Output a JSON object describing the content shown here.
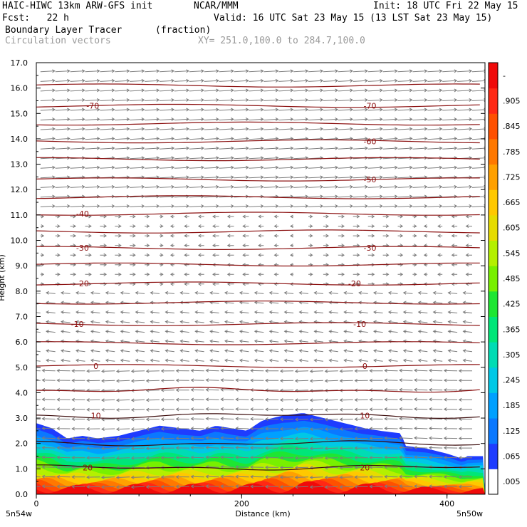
{
  "header": {
    "model": "HAIC-HIWC 13km ARW-GFS init",
    "org": "NCAR/MMM",
    "init": "Init: 18 UTC Fri 22 May 15",
    "fcst": "Fcst:   22 h",
    "valid": "Valid: 16 UTC Sat 23 May 15 (13 LST Sat 23 May 15)",
    "field": "Boundary Layer Tracer",
    "units": "(fraction)",
    "vectors": "Circulation vectors",
    "xy": "XY= 251.0,100.0 to 284.7,100.0"
  },
  "chart_data": {
    "type": "heatmap",
    "xlabel": "Distance (km)",
    "ylabel": "Height (km)",
    "xlim": [
      0,
      437
    ],
    "ylim": [
      0,
      17
    ],
    "x_ticks": [
      "0",
      "200",
      "400"
    ],
    "x_endpoints": [
      "5n54w",
      "5n50w"
    ],
    "y_ticks": [
      "0.0",
      "1.0",
      "2.0",
      "3.0",
      "4.0",
      "5.0",
      "6.0",
      "7.0",
      "8.0",
      "9.0",
      "10.0",
      "11.0",
      "12.0",
      "13.0",
      "14.0",
      "15.0",
      "16.0",
      "17.0"
    ],
    "colorbar": {
      "labels": [
        ".005",
        ".065",
        ".125",
        ".185",
        ".245",
        ".305",
        ".365",
        ".425",
        ".485",
        ".545",
        ".605",
        ".665",
        ".725",
        ".785",
        ".845",
        ".905",
        "-"
      ],
      "colors": [
        "#ffffff",
        "#1e3cff",
        "#0a78ff",
        "#00a0ff",
        "#00c8e6",
        "#00dcb4",
        "#00e678",
        "#1ee632",
        "#78f000",
        "#b4f000",
        "#e6dc00",
        "#ffc800",
        "#ffa000",
        "#ff7800",
        "#ff5000",
        "#ff2814",
        "#f00a0a"
      ]
    },
    "tracer_top_km": [
      [
        0,
        2.8
      ],
      [
        15,
        2.6
      ],
      [
        30,
        2.2
      ],
      [
        45,
        2.3
      ],
      [
        60,
        2.2
      ],
      [
        80,
        2.3
      ],
      [
        100,
        2.5
      ],
      [
        120,
        2.7
      ],
      [
        140,
        2.6
      ],
      [
        160,
        2.5
      ],
      [
        175,
        2.7
      ],
      [
        190,
        2.6
      ],
      [
        205,
        2.5
      ],
      [
        220,
        2.9
      ],
      [
        240,
        3.1
      ],
      [
        260,
        3.2
      ],
      [
        280,
        3.0
      ],
      [
        300,
        2.8
      ],
      [
        320,
        2.6
      ],
      [
        335,
        2.5
      ],
      [
        355,
        2.4
      ],
      [
        360,
        1.9
      ],
      [
        380,
        1.8
      ],
      [
        400,
        1.6
      ],
      [
        415,
        1.4
      ],
      [
        420,
        1.5
      ],
      [
        437,
        1.5
      ]
    ],
    "isotherms": [
      {
        "label": "-70",
        "label_positions_km": [
          55,
          325
        ]
      },
      {
        "label": "-60",
        "label_positions_km": [
          325
        ]
      },
      {
        "label": "-50",
        "label_positions_km": [
          325
        ]
      },
      {
        "label": "-40",
        "label_positions_km": [
          45
        ]
      },
      {
        "label": "-30",
        "label_positions_km": [
          45,
          325
        ]
      },
      {
        "label": "-20",
        "label_positions_km": [
          45,
          310
        ]
      },
      {
        "label": "-10",
        "label_positions_km": [
          40,
          315
        ]
      },
      {
        "label": "0",
        "label_positions_km": [
          58,
          320
        ]
      },
      {
        "label": "10",
        "label_positions_km": [
          58,
          320
        ]
      },
      {
        "label": "20",
        "label_positions_km": [
          50,
          320
        ]
      }
    ]
  }
}
